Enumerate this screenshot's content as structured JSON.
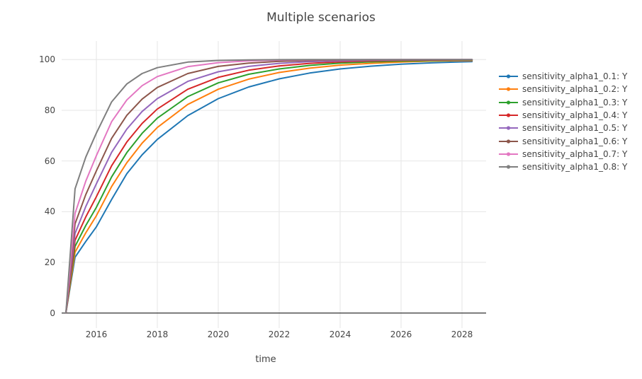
{
  "title": "Multiple scenarios",
  "x_axis": {
    "label": "time",
    "ticks": [
      "2016",
      "2018",
      "2020",
      "2022",
      "2024",
      "2026",
      "2028"
    ],
    "range": [
      2014.85,
      2028.85
    ]
  },
  "y_axis": {
    "ticks": [
      0,
      20,
      40,
      60,
      80,
      100
    ],
    "range": [
      -7,
      107.5
    ]
  },
  "colors": {
    "text": "#444444",
    "grid": "#e6e6e6",
    "zeroline": "#444444",
    "background": "#ffffff"
  },
  "chart_data": {
    "type": "line",
    "title": "Multiple scenarios",
    "xlabel": "time",
    "ylabel": "",
    "grid": true,
    "legend_position": "right",
    "xlim": [
      2014.85,
      2028.85
    ],
    "ylim": [
      -7,
      107.5
    ],
    "x": [
      2015,
      2015.3,
      2015.65,
      2016,
      2016.5,
      2017,
      2017.5,
      2018,
      2019,
      2020,
      2021,
      2022,
      2023,
      2024,
      2025,
      2026,
      2027,
      2028,
      2028.33
    ],
    "series": [
      {
        "name": "sensitivity_alpha1_0.1: Y",
        "color": "#1f77b4",
        "values": [
          0,
          22,
          28.2,
          34,
          44.8,
          55,
          62.4,
          68.5,
          77.9,
          84.6,
          89.2,
          92.4,
          94.7,
          96.3,
          97.4,
          98.2,
          98.7,
          99.1,
          99.2
        ]
      },
      {
        "name": "sensitivity_alpha1_0.2: Y",
        "color": "#ff7f0e",
        "values": [
          0,
          24,
          31.6,
          38.4,
          49.9,
          59.3,
          67,
          73.2,
          82.3,
          88.3,
          92.3,
          94.9,
          96.6,
          97.8,
          98.5,
          99.0,
          99.4,
          99.6,
          99.6
        ]
      },
      {
        "name": "sensitivity_alpha1_0.3: Y",
        "color": "#2ca02c",
        "values": [
          0,
          26.3,
          34.5,
          41.7,
          53.7,
          63.3,
          70.9,
          76.9,
          85.4,
          90.8,
          94.2,
          96.3,
          97.7,
          98.6,
          99.1,
          99.4,
          99.6,
          99.8,
          99.8
        ]
      },
      {
        "name": "sensitivity_alpha1_0.4: Y",
        "color": "#d62728",
        "values": [
          0,
          28.7,
          37.9,
          45.9,
          58.1,
          67.5,
          74.8,
          80.5,
          88.3,
          93.0,
          95.8,
          97.5,
          98.5,
          99.1,
          99.5,
          99.7,
          99.8,
          99.9,
          99.9
        ]
      },
      {
        "name": "sensitivity_alpha1_0.5: Y",
        "color": "#9467bd",
        "values": [
          0,
          31.4,
          42,
          51,
          63.4,
          72.6,
          79.5,
          84.6,
          91.4,
          95.2,
          97.3,
          98.5,
          99.2,
          99.5,
          99.7,
          99.85,
          99.9,
          99.95,
          99.95
        ]
      },
      {
        "name": "sensitivity_alpha1_0.6: Y",
        "color": "#8c564b",
        "values": [
          0,
          35.2,
          46.7,
          56.1,
          68.9,
          78.0,
          84.4,
          89.0,
          94.5,
          97.3,
          98.6,
          99.3,
          99.66,
          99.83,
          99.91,
          99.96,
          99.98,
          99.99,
          99.99
        ]
      },
      {
        "name": "sensitivity_alpha1_0.7: Y",
        "color": "#e377c2",
        "values": [
          0,
          39.3,
          52,
          62.1,
          75.5,
          84.1,
          89.7,
          93.3,
          97.2,
          98.8,
          99.5,
          99.79,
          99.91,
          99.96,
          99.98,
          99.99,
          100,
          100,
          100
        ]
      },
      {
        "name": "sensitivity_alpha1_0.8: Y",
        "color": "#7f7f7f",
        "values": [
          0,
          49,
          61.5,
          71,
          83.3,
          90.4,
          94.5,
          96.8,
          99.0,
          99.65,
          99.88,
          99.96,
          99.99,
          100,
          100,
          100,
          100,
          100,
          100
        ]
      }
    ]
  }
}
